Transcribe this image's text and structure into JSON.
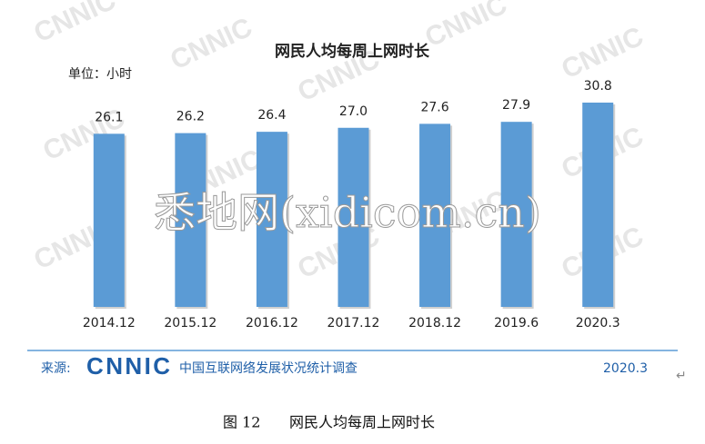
{
  "chart_data": {
    "type": "bar",
    "title": "网民人均每周上网时长",
    "unit_label": "单位：小时",
    "categories": [
      "2014.12",
      "2015.12",
      "2016.12",
      "2017.12",
      "2018.12",
      "2019.6",
      "2020.3"
    ],
    "values": [
      26.1,
      26.2,
      26.4,
      27.0,
      27.6,
      27.9,
      30.8
    ],
    "value_labels": [
      "26.1",
      "26.2",
      "26.4",
      "27.0",
      "27.6",
      "27.9",
      "30.8"
    ],
    "color": "#5b9bd5"
  },
  "footer": {
    "source_label": "来源:",
    "logo": "CNNIC",
    "survey": "中国互联网络发展状况统计调查",
    "date": "2020.3"
  },
  "watermark": "悉地网(xidicom.cn)",
  "watermark_tile": "CNNIC",
  "caption": {
    "figure": "图 12",
    "title": "网民人均每周上网时长"
  }
}
